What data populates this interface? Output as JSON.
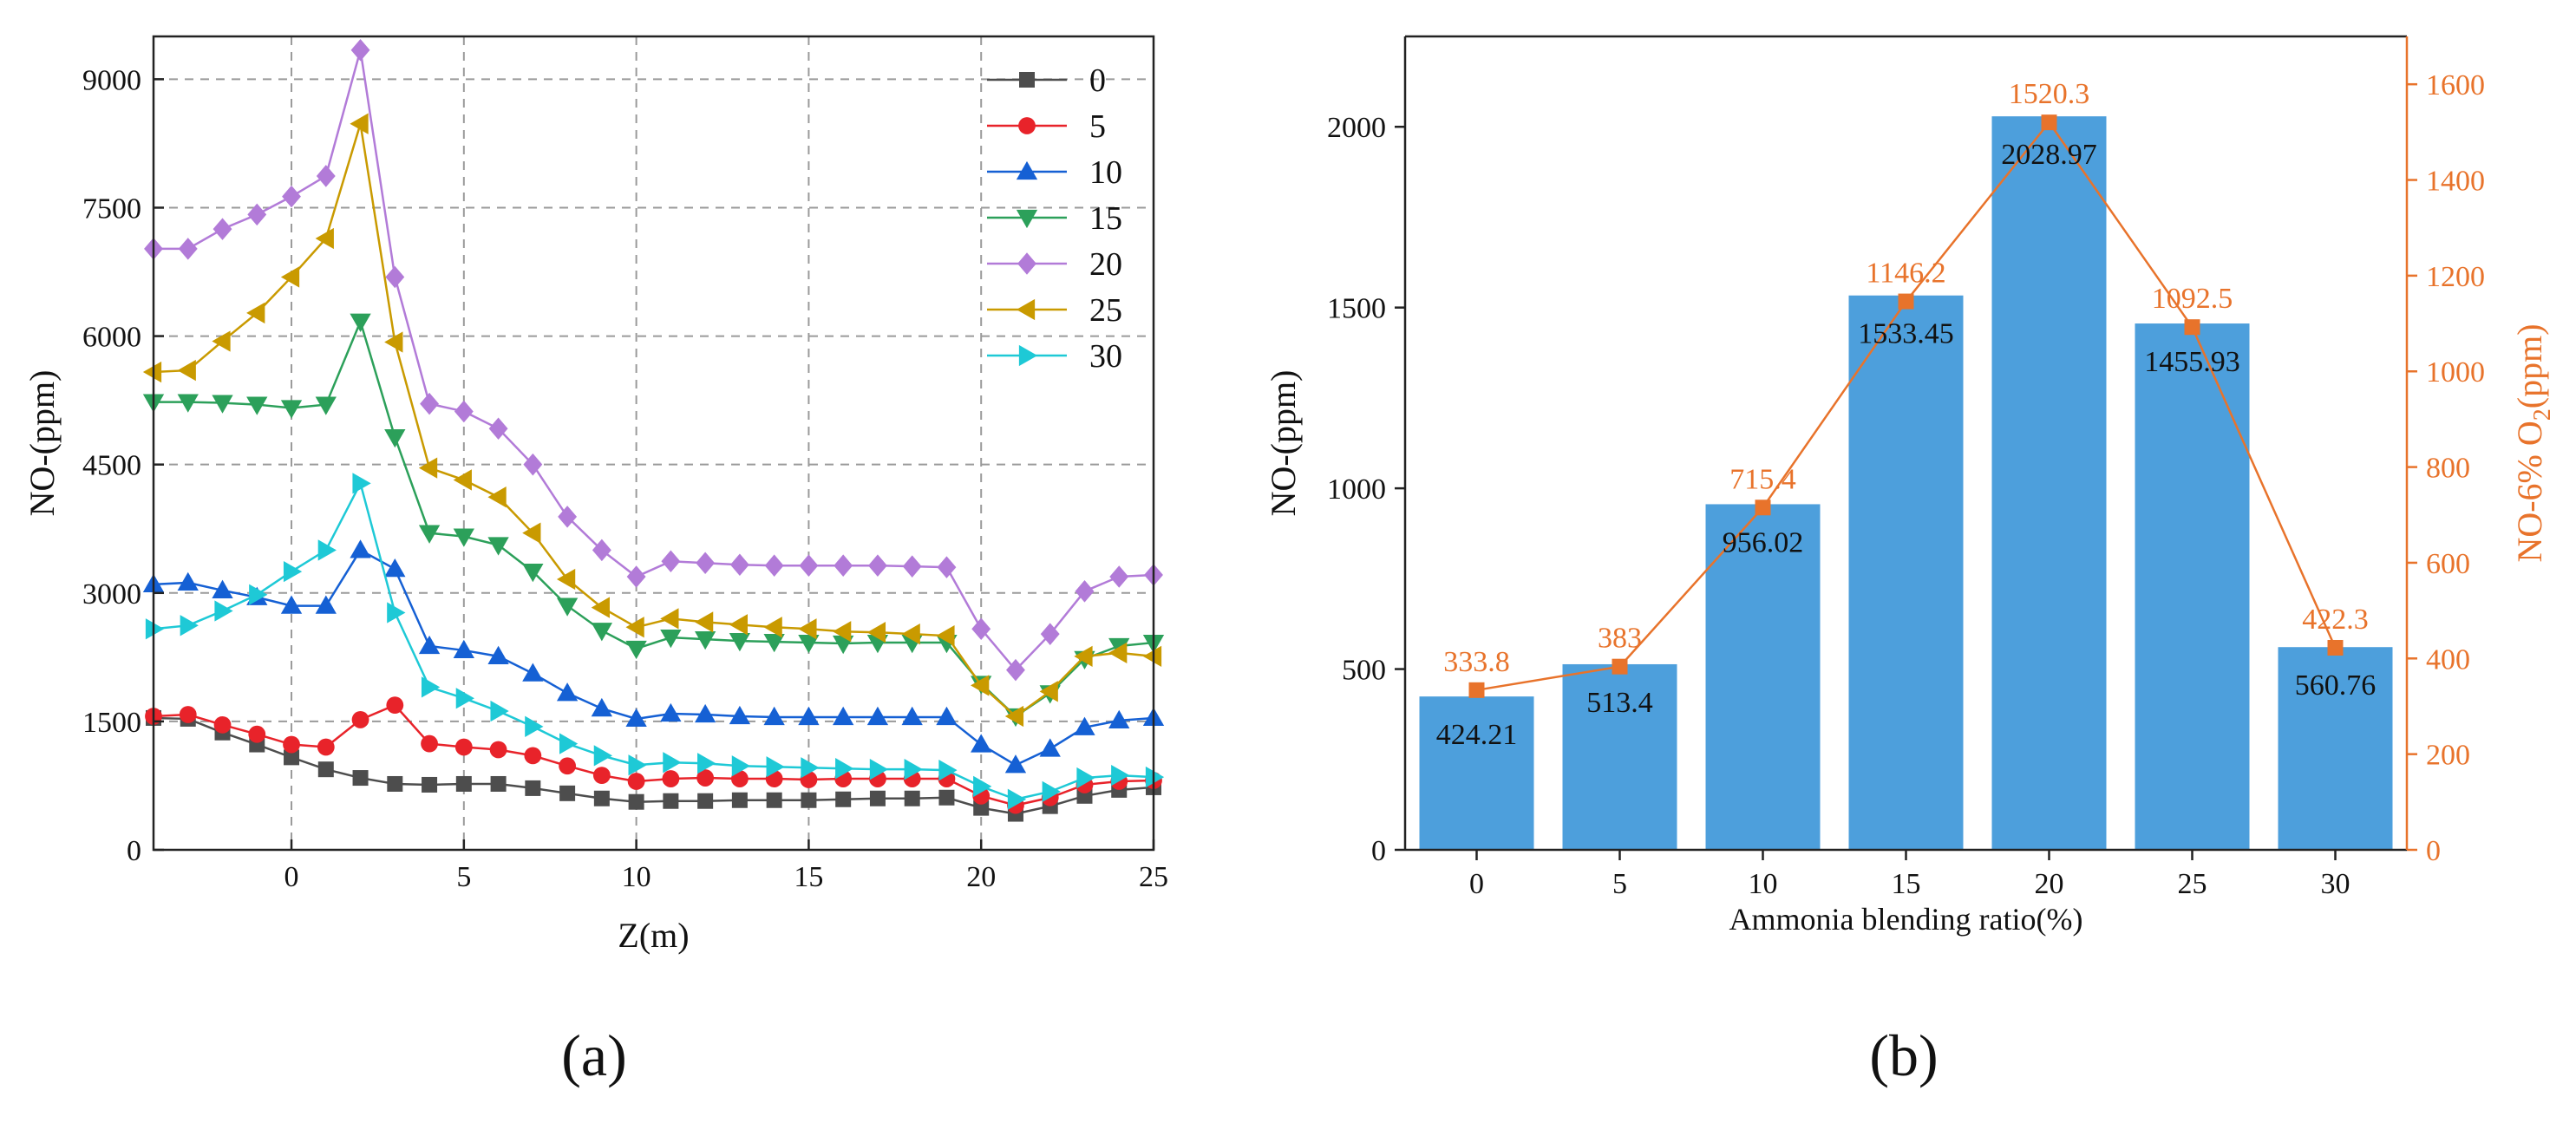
{
  "chart_data": [
    {
      "type": "line",
      "panel_label": "(a)",
      "xlabel": "Z(m)",
      "ylabel": "NO-(ppm)",
      "xlim": [
        -4,
        25
      ],
      "ylim": [
        0,
        9500
      ],
      "xticks": [
        0,
        5,
        10,
        15,
        20,
        25
      ],
      "yticks": [
        0,
        1500,
        3000,
        4500,
        6000,
        7500,
        9000
      ],
      "grid": true,
      "legend_position": "top-right",
      "x": [
        -4,
        -3,
        -2,
        -1,
        0,
        1,
        2,
        3,
        4,
        5,
        6,
        7,
        8,
        9,
        10,
        11,
        12,
        13,
        14,
        15,
        16,
        17,
        18,
        19,
        20,
        21,
        22,
        23,
        24,
        25
      ],
      "series": [
        {
          "name": "0",
          "color": "#4d4d4d",
          "marker": "square",
          "values": [
            1540,
            1530,
            1370,
            1230,
            1080,
            940,
            840,
            770,
            760,
            770,
            770,
            720,
            660,
            600,
            560,
            570,
            570,
            580,
            580,
            580,
            590,
            600,
            600,
            610,
            490,
            420,
            510,
            630,
            700,
            730
          ]
        },
        {
          "name": "5",
          "color": "#e8232a",
          "marker": "circle",
          "values": [
            1560,
            1580,
            1460,
            1350,
            1230,
            1200,
            1520,
            1690,
            1240,
            1200,
            1170,
            1100,
            980,
            870,
            800,
            830,
            840,
            830,
            830,
            820,
            830,
            830,
            830,
            830,
            630,
            520,
            610,
            760,
            800,
            810
          ]
        },
        {
          "name": "10",
          "color": "#1560d4",
          "marker": "triangle-up",
          "values": [
            3100,
            3120,
            3030,
            2950,
            2850,
            2850,
            3500,
            3280,
            2380,
            2330,
            2260,
            2060,
            1830,
            1650,
            1530,
            1590,
            1580,
            1560,
            1550,
            1550,
            1550,
            1550,
            1550,
            1550,
            1230,
            990,
            1180,
            1430,
            1510,
            1540
          ]
        },
        {
          "name": "15",
          "color": "#2ca05a",
          "marker": "triangle-down",
          "values": [
            5230,
            5230,
            5220,
            5200,
            5160,
            5200,
            6170,
            4820,
            3700,
            3660,
            3560,
            3250,
            2850,
            2560,
            2350,
            2480,
            2460,
            2440,
            2430,
            2420,
            2410,
            2420,
            2420,
            2420,
            1940,
            1560,
            1830,
            2230,
            2380,
            2420
          ]
        },
        {
          "name": "20",
          "color": "#b27bd8",
          "marker": "diamond",
          "values": [
            7020,
            7020,
            7250,
            7420,
            7630,
            7870,
            9340,
            6690,
            5210,
            5120,
            4920,
            4500,
            3890,
            3500,
            3190,
            3370,
            3350,
            3330,
            3320,
            3320,
            3320,
            3320,
            3310,
            3300,
            2580,
            2100,
            2520,
            3020,
            3190,
            3210
          ]
        },
        {
          "name": "25",
          "color": "#c99a00",
          "marker": "triangle-left",
          "values": [
            5580,
            5600,
            5940,
            6270,
            6690,
            7140,
            8480,
            5930,
            4460,
            4320,
            4120,
            3700,
            3160,
            2830,
            2600,
            2700,
            2660,
            2630,
            2600,
            2580,
            2550,
            2540,
            2520,
            2500,
            1920,
            1560,
            1850,
            2260,
            2300,
            2260
          ]
        },
        {
          "name": "30",
          "color": "#1ec9d6",
          "marker": "triangle-right",
          "values": [
            2580,
            2620,
            2790,
            2980,
            3250,
            3500,
            4280,
            2770,
            1900,
            1770,
            1620,
            1440,
            1240,
            1100,
            990,
            1020,
            1010,
            980,
            970,
            960,
            950,
            940,
            940,
            930,
            740,
            590,
            680,
            840,
            870,
            850
          ]
        }
      ]
    },
    {
      "type": "bar",
      "panel_label": "(b)",
      "xlabel": "Ammonia blending ratio(%)",
      "ylabel": "NO-(ppm)",
      "ylabel2_pre": "NO-6% O",
      "ylabel2_sub": "2",
      "ylabel2_post": "(ppm)",
      "categories": [
        "0",
        "5",
        "10",
        "15",
        "20",
        "25",
        "30"
      ],
      "ylim": [
        0,
        2250
      ],
      "yticks": [
        0,
        500,
        1000,
        1500,
        2000
      ],
      "ylim2": [
        0,
        1700
      ],
      "yticks2": [
        0,
        200,
        400,
        600,
        800,
        1000,
        1200,
        1400,
        1600
      ],
      "bar_color": "#4d9fdc",
      "line_color": "#e8732b",
      "series": [
        {
          "name": "NO-(ppm)",
          "type": "bar",
          "axis": "left",
          "values": [
            424.21,
            513.4,
            956.02,
            1533.45,
            2028.97,
            1455.93,
            560.76
          ],
          "labels": [
            "424.21",
            "513.4",
            "956.02",
            "1533.45",
            "2028.97",
            "1455.93",
            "560.76"
          ]
        },
        {
          "name": "NO-6% O2(ppm)",
          "type": "line",
          "axis": "right",
          "values": [
            333.8,
            383,
            715.4,
            1146.2,
            1520.3,
            1092.5,
            422.3
          ],
          "labels": [
            "333.8",
            "383",
            "715.4",
            "1146.2",
            "1520.3",
            "1092.5",
            "422.3"
          ]
        }
      ]
    }
  ]
}
